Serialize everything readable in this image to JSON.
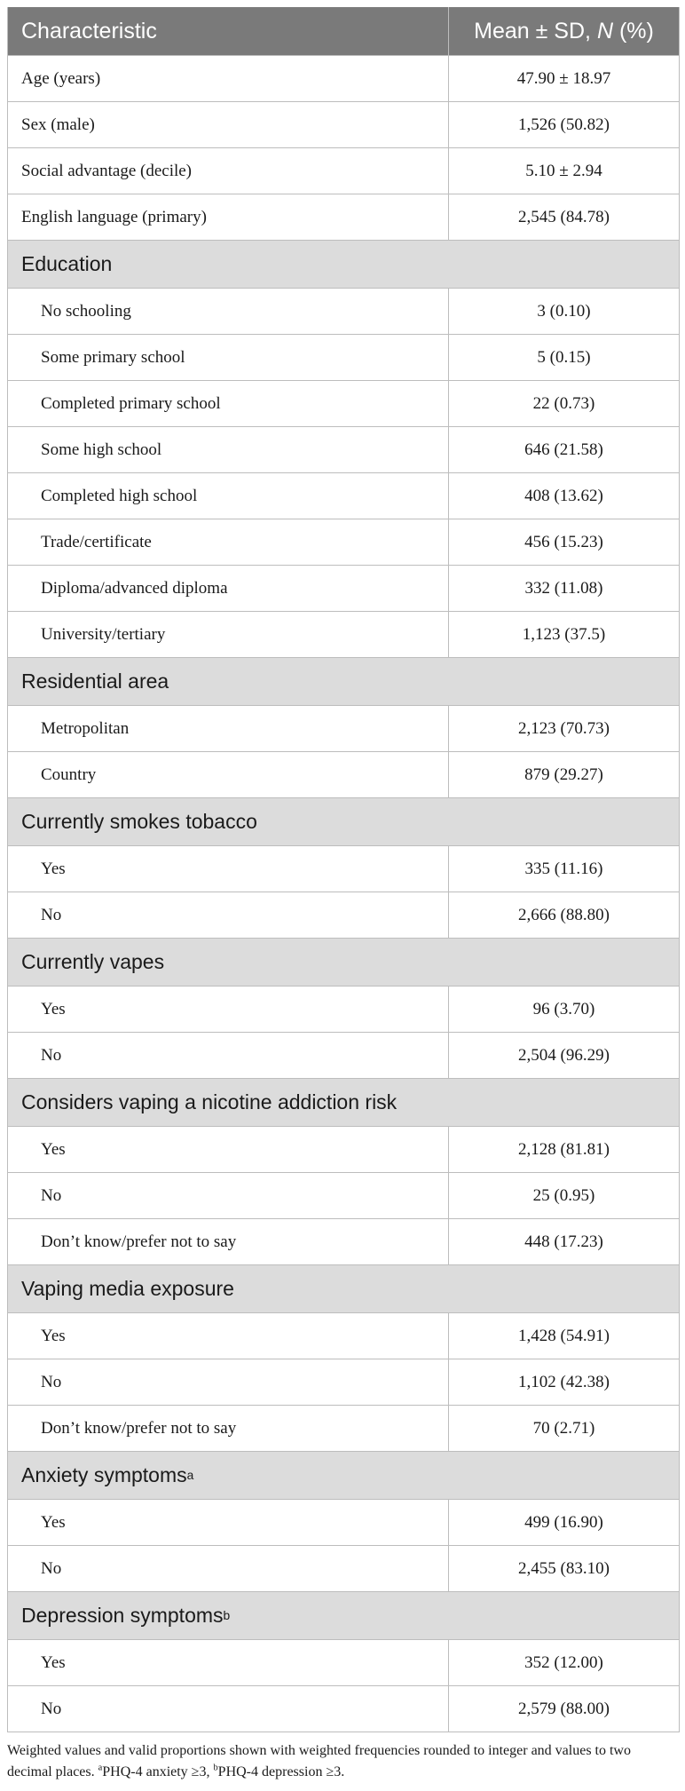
{
  "header": {
    "col1": "Characteristic",
    "col2_prefix": "Mean ± SD, ",
    "col2_italic": "N",
    "col2_suffix": " (%)"
  },
  "rows": [
    {
      "type": "row",
      "label": "Age (years)",
      "value": "47.90 ± 18.97"
    },
    {
      "type": "row",
      "label": "Sex (male)",
      "value": "1,526 (50.82)"
    },
    {
      "type": "row",
      "label": "Social advantage (decile)",
      "value": "5.10 ± 2.94"
    },
    {
      "type": "row",
      "label": "English language (primary)",
      "value": "2,545 (84.78)"
    },
    {
      "type": "section",
      "label": "Education"
    },
    {
      "type": "sub",
      "label": "No schooling",
      "value": "3 (0.10)"
    },
    {
      "type": "sub",
      "label": "Some primary school",
      "value": "5 (0.15)"
    },
    {
      "type": "sub",
      "label": "Completed primary school",
      "value": "22 (0.73)"
    },
    {
      "type": "sub",
      "label": "Some high school",
      "value": "646 (21.58)"
    },
    {
      "type": "sub",
      "label": "Completed high school",
      "value": "408 (13.62)"
    },
    {
      "type": "sub",
      "label": "Trade/certificate",
      "value": "456 (15.23)"
    },
    {
      "type": "sub",
      "label": "Diploma/advanced diploma",
      "value": "332 (11.08)"
    },
    {
      "type": "sub",
      "label": "University/tertiary",
      "value": "1,123 (37.5)"
    },
    {
      "type": "section",
      "label": "Residential area"
    },
    {
      "type": "sub",
      "label": "Metropolitan",
      "value": "2,123 (70.73)"
    },
    {
      "type": "sub",
      "label": "Country",
      "value": "879 (29.27)"
    },
    {
      "type": "section",
      "label": "Currently smokes tobacco"
    },
    {
      "type": "sub",
      "label": "Yes",
      "value": "335 (11.16)"
    },
    {
      "type": "sub",
      "label": "No",
      "value": "2,666 (88.80)"
    },
    {
      "type": "section",
      "label": "Currently vapes"
    },
    {
      "type": "sub",
      "label": "Yes",
      "value": "96 (3.70)"
    },
    {
      "type": "sub",
      "label": "No",
      "value": "2,504 (96.29)"
    },
    {
      "type": "section",
      "label": "Considers vaping a nicotine addiction risk"
    },
    {
      "type": "sub",
      "label": "Yes",
      "value": "2,128 (81.81)"
    },
    {
      "type": "sub",
      "label": "No",
      "value": "25 (0.95)"
    },
    {
      "type": "sub",
      "label": "Don’t know/prefer not to say",
      "value": "448 (17.23)"
    },
    {
      "type": "section",
      "label": "Vaping media exposure"
    },
    {
      "type": "sub",
      "label": "Yes",
      "value": "1,428 (54.91)"
    },
    {
      "type": "sub",
      "label": "No",
      "value": "1,102 (42.38)"
    },
    {
      "type": "sub",
      "label": "Don’t know/prefer not to say",
      "value": "70 (2.71)"
    },
    {
      "type": "section",
      "label": "Anxiety symptoms",
      "sup": "a"
    },
    {
      "type": "sub",
      "label": "Yes",
      "value": "499 (16.90)"
    },
    {
      "type": "sub",
      "label": "No",
      "value": "2,455 (83.10)"
    },
    {
      "type": "section",
      "label": "Depression symptoms",
      "sup": "b"
    },
    {
      "type": "sub",
      "label": "Yes",
      "value": "352 (12.00)"
    },
    {
      "type": "sub",
      "label": "No",
      "value": "2,579 (88.00)"
    }
  ],
  "footnote": {
    "text": "Weighted values and valid proportions shown with weighted frequencies rounded to integer and values to two decimal places. ",
    "sup_a": "a",
    "note_a": "PHQ-4 anxiety ≥3, ",
    "sup_b": "b",
    "note_b": "PHQ-4 depression ≥3."
  }
}
